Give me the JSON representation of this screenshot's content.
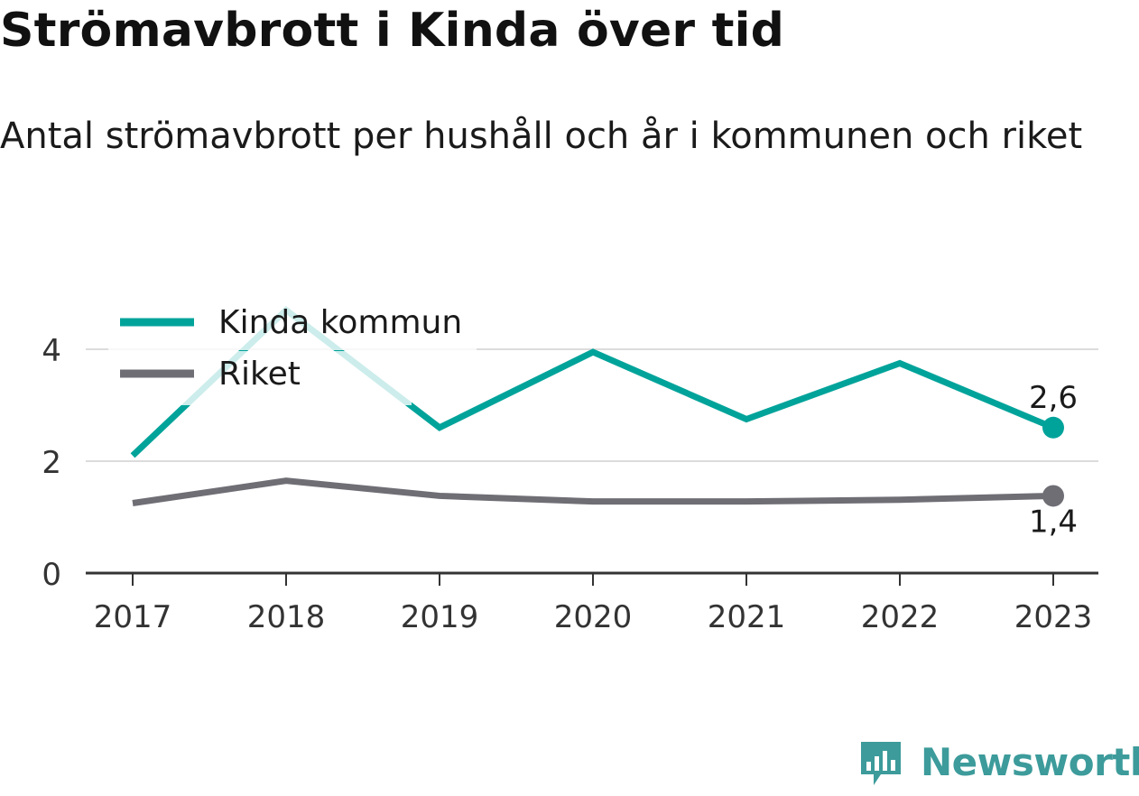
{
  "title": "Strömavbrott i Kinda över tid",
  "subtitle": "Antal strömavbrott per hushåll och år i kommunen och riket",
  "brand": "Newsworthy",
  "colors": {
    "kinda": "#00a39a",
    "riket": "#6f6e75",
    "grid": "#dcdcdc",
    "axis": "#333333",
    "brand": "#3d9b9b"
  },
  "chart_data": {
    "type": "line",
    "x": [
      "2017",
      "2018",
      "2019",
      "2020",
      "2021",
      "2022",
      "2023"
    ],
    "ylim": [
      0,
      4.9
    ],
    "yticks": [
      0,
      2,
      4
    ],
    "ytick_labels": [
      "0",
      "2",
      "4"
    ],
    "series": [
      {
        "name": "Kinda kommun",
        "values": [
          2.1,
          4.7,
          2.6,
          3.95,
          2.75,
          3.75,
          2.6
        ],
        "end_label": "2,6",
        "color": "#00a39a"
      },
      {
        "name": "Riket",
        "values": [
          1.25,
          1.65,
          1.38,
          1.28,
          1.28,
          1.31,
          1.38
        ],
        "end_label": "1,4",
        "color": "#6f6e75"
      }
    ],
    "legend": "top-left",
    "grid": true
  }
}
